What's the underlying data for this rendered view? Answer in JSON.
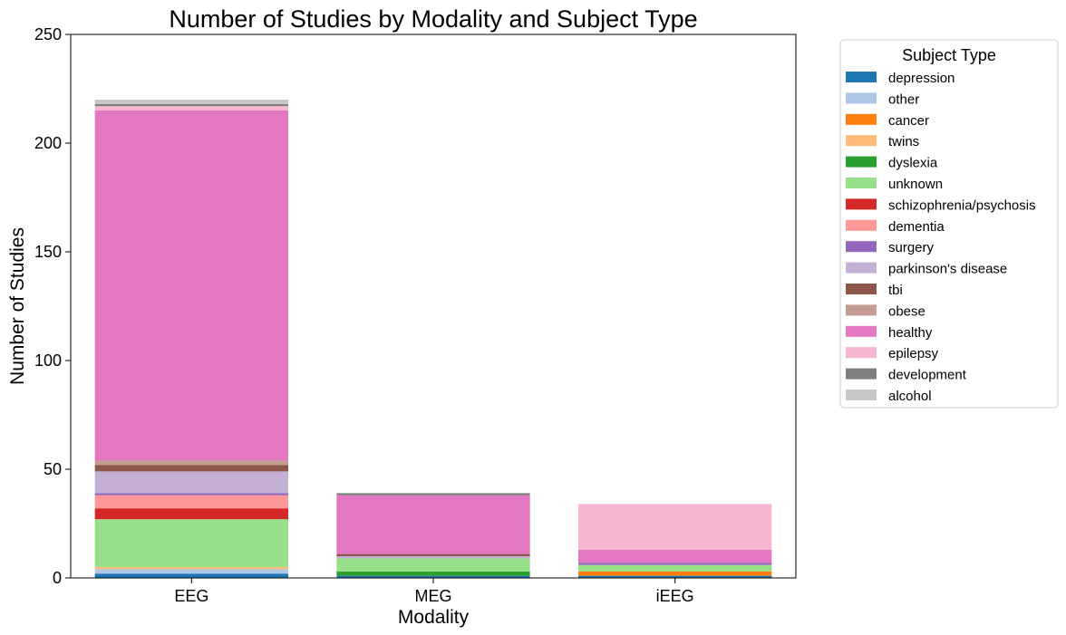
{
  "chart_data": {
    "type": "bar",
    "stacked": true,
    "title": "Number of Studies by Modality and Subject Type",
    "xlabel": "Modality",
    "ylabel": "Number of Studies",
    "ylim": [
      0,
      250
    ],
    "yticks": [
      0,
      50,
      100,
      150,
      200,
      250
    ],
    "grid": false,
    "categories": [
      "EEG",
      "MEG",
      "iEEG"
    ],
    "legend": {
      "title": "Subject Type",
      "placement": "outside-right-top"
    },
    "series": [
      {
        "name": "depression",
        "color": "#1f77b4",
        "values": [
          2,
          1,
          1
        ]
      },
      {
        "name": "other",
        "color": "#aec7e8",
        "values": [
          2,
          0,
          0
        ]
      },
      {
        "name": "cancer",
        "color": "#ff7f0e",
        "values": [
          0,
          0,
          2
        ]
      },
      {
        "name": "twins",
        "color": "#ffbb78",
        "values": [
          1,
          0,
          0
        ]
      },
      {
        "name": "dyslexia",
        "color": "#2ca02c",
        "values": [
          0,
          2,
          0
        ]
      },
      {
        "name": "unknown",
        "color": "#98df8a",
        "values": [
          22,
          6,
          3
        ]
      },
      {
        "name": "schizophrenia/psychosis",
        "color": "#d62728",
        "values": [
          5,
          0,
          0
        ]
      },
      {
        "name": "dementia",
        "color": "#ff9896",
        "values": [
          6,
          0,
          0
        ]
      },
      {
        "name": "surgery",
        "color": "#9467bd",
        "values": [
          1,
          0,
          1
        ]
      },
      {
        "name": "parkinson's disease",
        "color": "#c5b0d5",
        "values": [
          10,
          1,
          0
        ]
      },
      {
        "name": "tbi",
        "color": "#8c564b",
        "values": [
          3,
          1,
          0
        ]
      },
      {
        "name": "obese",
        "color": "#c49c94",
        "values": [
          2,
          0,
          0
        ]
      },
      {
        "name": "healthy",
        "color": "#e377c2",
        "values": [
          161,
          27,
          6
        ]
      },
      {
        "name": "epilepsy",
        "color": "#f7b6d2",
        "values": [
          2,
          0,
          21
        ]
      },
      {
        "name": "development",
        "color": "#7f7f7f",
        "values": [
          1,
          1,
          0
        ]
      },
      {
        "name": "alcohol",
        "color": "#c7c7c7",
        "values": [
          2,
          0,
          0
        ]
      }
    ]
  }
}
